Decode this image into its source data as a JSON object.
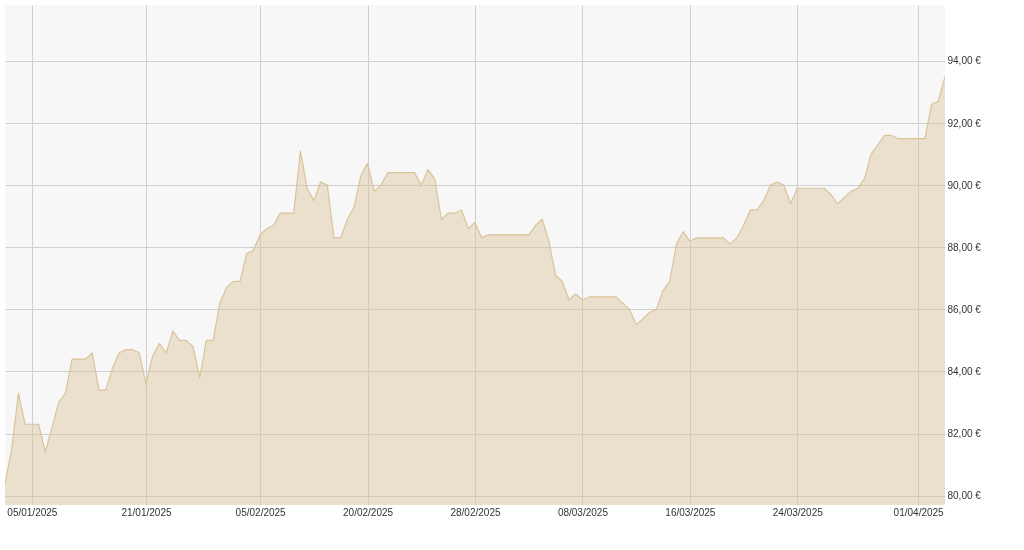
{
  "chart_data": {
    "type": "area",
    "categories": [
      null,
      null,
      null,
      null,
      "05/01/2025",
      null,
      null,
      null,
      null,
      null,
      null,
      null,
      null,
      null,
      null,
      null,
      null,
      null,
      null,
      null,
      null,
      "21/01/2025",
      null,
      null,
      null,
      null,
      null,
      null,
      null,
      null,
      null,
      null,
      null,
      null,
      null,
      null,
      null,
      null,
      "05/02/2025",
      null,
      null,
      null,
      null,
      null,
      null,
      null,
      null,
      null,
      null,
      null,
      null,
      null,
      null,
      null,
      "20/02/2025",
      null,
      null,
      null,
      null,
      null,
      null,
      null,
      null,
      null,
      null,
      null,
      null,
      null,
      null,
      null,
      "28/02/2025",
      null,
      null,
      null,
      null,
      null,
      null,
      null,
      null,
      null,
      null,
      null,
      null,
      null,
      null,
      null,
      "08/03/2025",
      null,
      null,
      null,
      null,
      null,
      null,
      null,
      null,
      null,
      null,
      null,
      null,
      null,
      null,
      null,
      "16/03/2025",
      null,
      null,
      null,
      null,
      null,
      null,
      null,
      null,
      null,
      null,
      null,
      null,
      null,
      null,
      null,
      "24/03/2025",
      null,
      null,
      null,
      null,
      null,
      null,
      null,
      null,
      null,
      null,
      null,
      null,
      null,
      null,
      null,
      null,
      null,
      "01/04/2025",
      null,
      null,
      null,
      null
    ],
    "series": [
      {
        "color": "#d9c49a",
        "values": [
          80.4,
          81.5,
          83.3,
          82.3,
          82.3,
          82.3,
          81.4,
          82.2,
          83.0,
          83.3,
          84.4,
          84.4,
          84.4,
          84.6,
          83.4,
          83.4,
          84.1,
          84.6,
          84.7,
          84.7,
          84.6,
          83.6,
          84.5,
          84.9,
          84.6,
          85.3,
          85.0,
          85.0,
          84.8,
          83.8,
          85.0,
          85.0,
          86.2,
          86.7,
          86.9,
          86.9,
          87.8,
          87.9,
          88.4,
          88.6,
          88.7,
          89.1,
          89.1,
          89.1,
          91.1,
          89.9,
          89.5,
          90.1,
          90.0,
          88.3,
          88.3,
          88.9,
          89.3,
          90.3,
          90.7,
          89.8,
          90.0,
          90.4,
          90.4,
          90.4,
          90.4,
          90.4,
          90.0,
          90.5,
          90.2,
          88.9,
          89.1,
          89.1,
          89.2,
          88.6,
          88.8,
          88.3,
          88.4,
          88.4,
          88.4,
          88.4,
          88.4,
          88.4,
          88.4,
          88.7,
          88.9,
          88.2,
          87.1,
          86.9,
          86.3,
          86.5,
          86.3,
          86.4,
          86.4,
          86.4,
          86.4,
          86.4,
          86.2,
          86.0,
          85.5,
          85.7,
          85.9,
          86.0,
          86.6,
          86.9,
          88.1,
          88.5,
          88.2,
          88.3,
          88.3,
          88.3,
          88.3,
          88.3,
          88.1,
          88.3,
          88.7,
          89.2,
          89.2,
          89.5,
          90.0,
          90.1,
          90.0,
          89.4,
          89.9,
          89.9,
          89.9,
          89.9,
          89.9,
          89.7,
          89.4,
          89.6,
          89.8,
          89.9,
          90.2,
          91.0,
          91.3,
          91.6,
          91.6,
          91.5,
          91.5,
          91.5,
          91.5,
          91.5,
          92.6,
          92.7,
          93.5
        ]
      }
    ],
    "ylim": [
      79.7,
      95.8
    ],
    "yticks": [
      {
        "value": 80,
        "label": "80,00 €"
      },
      {
        "value": 82,
        "label": "82,00 €"
      },
      {
        "value": 84,
        "label": "84,00 €"
      },
      {
        "value": 86,
        "label": "86,00 €"
      },
      {
        "value": 88,
        "label": "88,00 €"
      },
      {
        "value": 90,
        "label": "90,00 €"
      },
      {
        "value": 92,
        "label": "92,00 €"
      },
      {
        "value": 94,
        "label": "94,00 €"
      }
    ],
    "grid": true
  }
}
